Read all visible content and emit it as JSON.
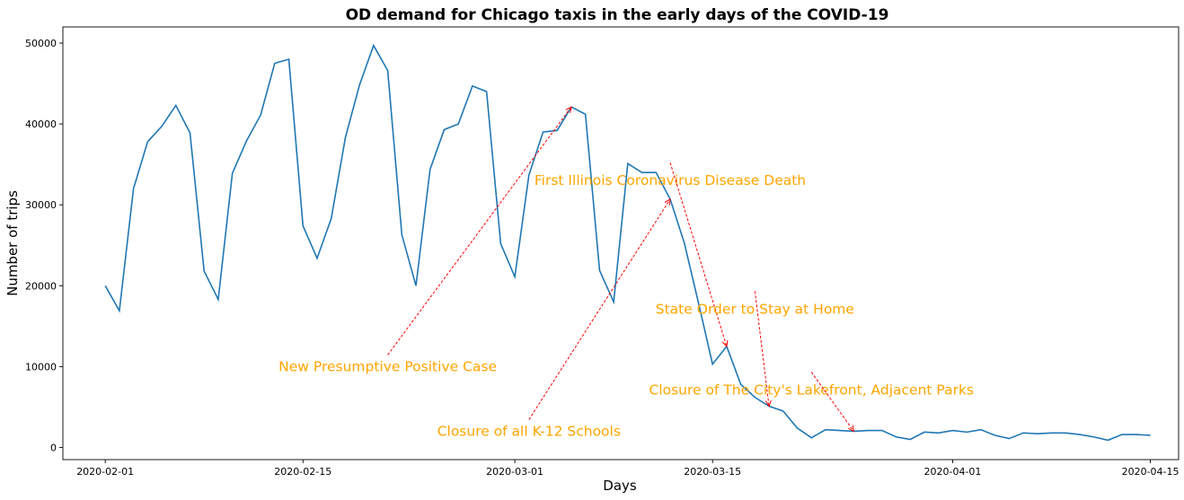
{
  "chart_data": {
    "type": "line",
    "title": "OD demand for Chicago taxis in the early days of the COVID-19",
    "xlabel": "Days",
    "ylabel": "Number of trips",
    "x_start": "2020-02-01",
    "x_end": "2020-04-15",
    "xlim": [
      "2020-01-29",
      "2020-04-17"
    ],
    "ylim": [
      -1500,
      52000
    ],
    "xticks": [
      "2020-02-01",
      "2020-02-15",
      "2020-03-01",
      "2020-03-15",
      "2020-04-01",
      "2020-04-15"
    ],
    "yticks": [
      0,
      10000,
      20000,
      30000,
      40000,
      50000
    ],
    "grid": false,
    "line_color": "#1f77b4",
    "series": [
      {
        "values": [
          20000,
          16900,
          32000,
          37800,
          39700,
          42300,
          38900,
          21800,
          18300,
          33900,
          37900,
          41100,
          47500,
          48000,
          27400,
          23400,
          28300,
          38300,
          44800,
          49700,
          46600,
          26300,
          20000,
          34400,
          39300,
          40000,
          44700,
          44000,
          25200,
          21100,
          33700,
          39000,
          39200,
          42100,
          41200,
          21900,
          18000,
          35100,
          34000,
          34000,
          30700,
          25300,
          17900,
          10300,
          12500,
          7800,
          6200,
          5100,
          4500,
          2400,
          1200,
          2200,
          2100,
          2000,
          2100,
          2100,
          1300,
          1000,
          1900,
          1800,
          2100,
          1900,
          2200,
          1500,
          1100,
          1800,
          1700,
          1800,
          1800,
          1600,
          1300,
          900,
          1600,
          1600,
          1500
        ]
      }
    ],
    "annotations": [
      {
        "text": "New Presumptive Positive Case",
        "target_x": "2020-03-05",
        "target_y": 42100,
        "text_x": "2020-02-21",
        "text_y": 10000
      },
      {
        "text": "Closure of all K-12 Schools",
        "target_x": "2020-03-12",
        "target_y": 30700,
        "text_x": "2020-03-02",
        "text_y": 2000
      },
      {
        "text": "First Illinois Coronavirus Disease Death",
        "target_x": "2020-03-16",
        "target_y": 12500,
        "text_x": "2020-03-12",
        "text_y": 33000
      },
      {
        "text": "State Order to Stay at Home",
        "target_x": "2020-03-19",
        "target_y": 5100,
        "text_x": "2020-03-18",
        "text_y": 17100
      },
      {
        "text": "Closure of The City's Lakefront, Adjacent Parks",
        "target_x": "2020-03-25",
        "target_y": 2000,
        "text_x": "2020-03-22",
        "text_y": 7100
      }
    ],
    "annotation_text_color": "#FFA500",
    "arrow_color": "#ff0000"
  }
}
